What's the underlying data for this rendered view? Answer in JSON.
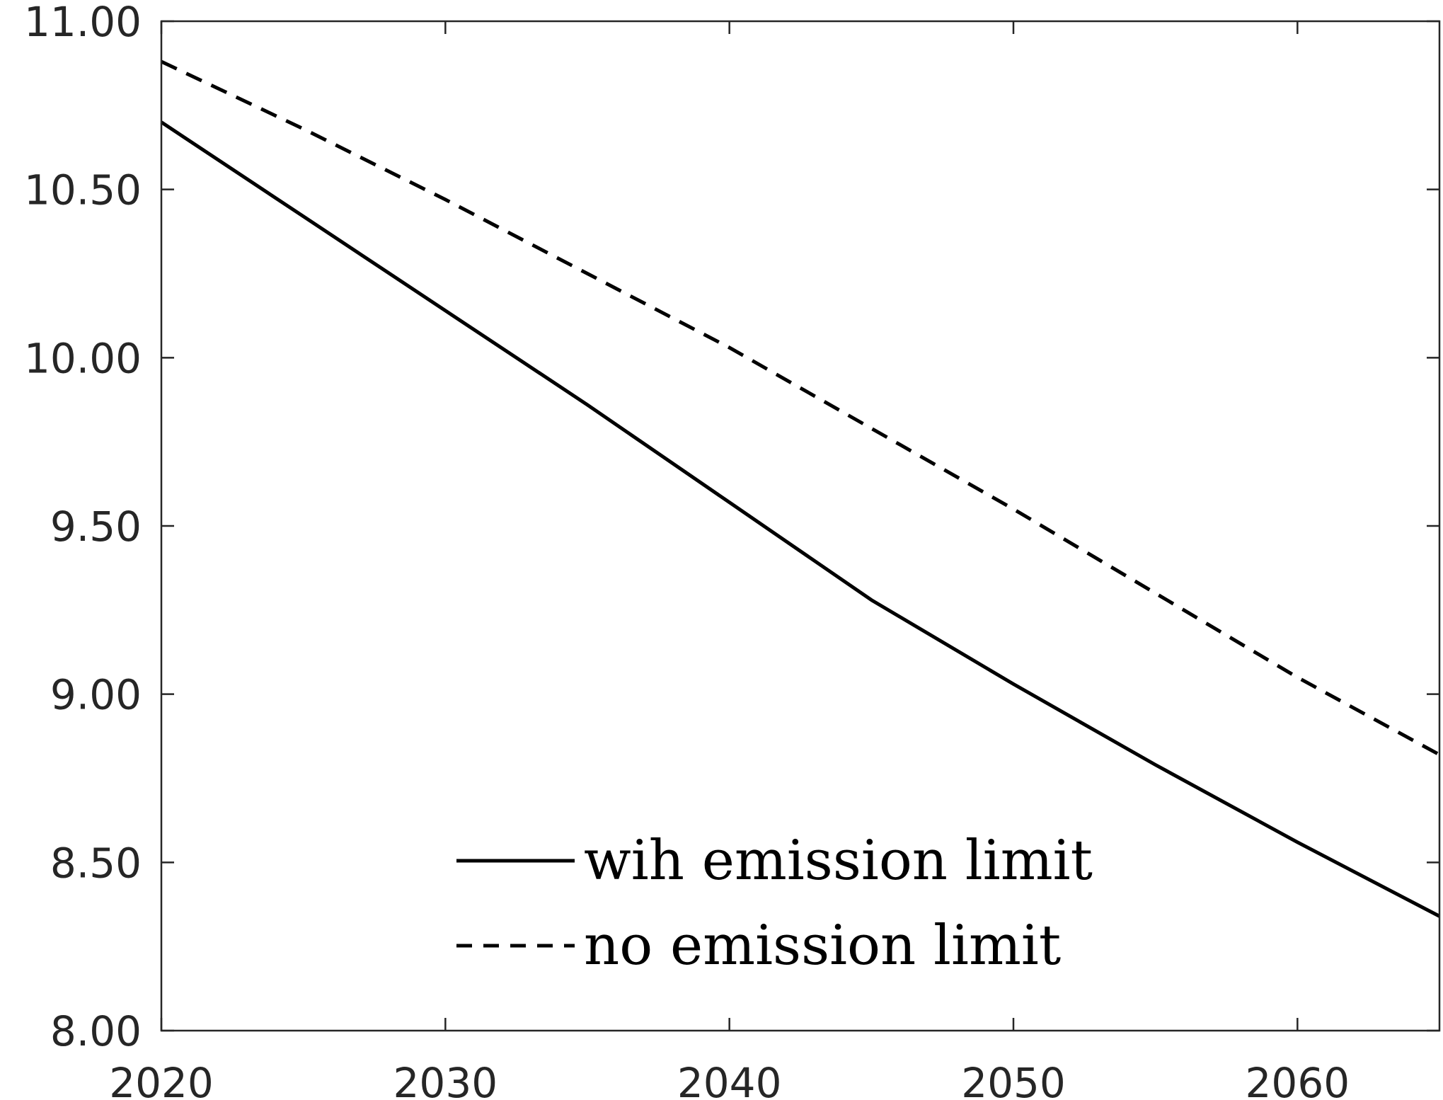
{
  "chart_data": {
    "type": "line",
    "title": "",
    "xlabel": "",
    "ylabel": "",
    "xlim": [
      2020,
      2065
    ],
    "ylim": [
      8.0,
      11.0
    ],
    "x_ticks": [
      2020,
      2030,
      2040,
      2050,
      2060
    ],
    "x_tick_labels": [
      "2020",
      "2030",
      "2040",
      "2050",
      "2060"
    ],
    "y_ticks": [
      8.0,
      8.5,
      9.0,
      9.5,
      10.0,
      10.5,
      11.0
    ],
    "y_tick_labels": [
      "8.00",
      "8.50",
      "9.00",
      "9.50",
      "10.00",
      "10.50",
      "11.00"
    ],
    "grid": false,
    "legend_position": "bottom-center",
    "series": [
      {
        "name": "wih emission limit",
        "line_style": "solid",
        "color": "#000000",
        "x": [
          2020,
          2025,
          2030,
          2035,
          2040,
          2045,
          2050,
          2055,
          2060,
          2065
        ],
        "y": [
          10.7,
          10.42,
          10.14,
          9.86,
          9.57,
          9.28,
          9.03,
          8.79,
          8.56,
          8.34
        ]
      },
      {
        "name": "no emission limit",
        "line_style": "dashed",
        "color": "#000000",
        "x": [
          2020,
          2025,
          2030,
          2035,
          2040,
          2045,
          2050,
          2055,
          2060,
          2065
        ],
        "y": [
          10.88,
          10.68,
          10.47,
          10.25,
          10.03,
          9.79,
          9.55,
          9.3,
          9.05,
          8.82
        ]
      }
    ]
  }
}
